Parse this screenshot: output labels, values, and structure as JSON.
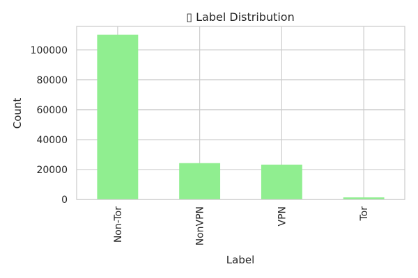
{
  "chart_data": {
    "type": "bar",
    "title": "▯ Label Distribution",
    "xlabel": "Label",
    "ylabel": "Count",
    "categories": [
      "Non-Tor",
      "NonVPN",
      "VPN",
      "Tor"
    ],
    "values": [
      110200,
      24300,
      23300,
      1400
    ],
    "ylim": [
      0,
      115700
    ],
    "yticks": [
      0,
      20000,
      40000,
      60000,
      80000,
      100000
    ],
    "ytick_labels": [
      "0",
      "20000",
      "40000",
      "60000",
      "80000",
      "100000"
    ],
    "grid": true,
    "bar_color": "#90ee90",
    "grid_color": "#cccccc",
    "axes_color": "#cccccc"
  }
}
